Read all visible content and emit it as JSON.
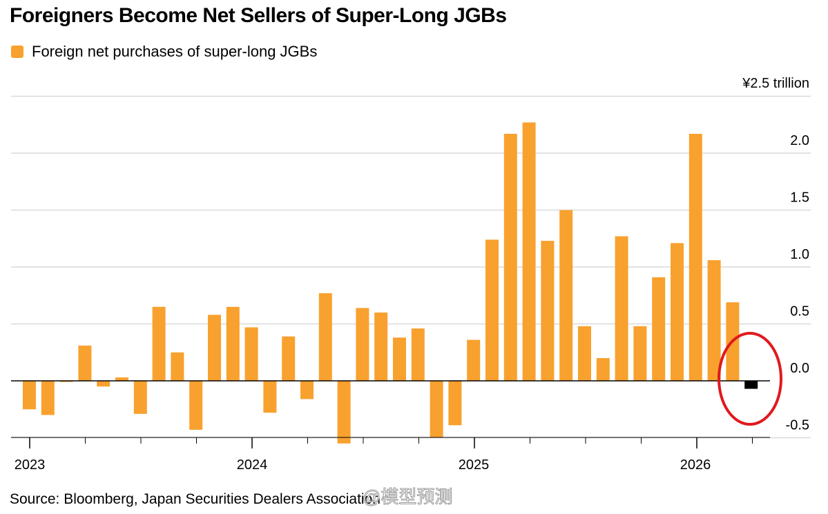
{
  "title": "Foreigners Become Net Sellers of Super-Long JGBs",
  "legend": {
    "label": "Foreign net purchases of super-long JGBs",
    "color": "#f8a12f"
  },
  "source": "Source: Bloomberg, Japan Securities Dealers Association",
  "watermark": "@模型预测",
  "colors": {
    "bar": "#f8a12f",
    "latest_bar": "#000000",
    "highlight_circle": "#e0191e",
    "grid": "#d9d9d9"
  },
  "chart_data": {
    "type": "bar",
    "unit_label": "¥2.5 trillion",
    "ylim": [
      -0.5,
      2.5
    ],
    "y_ticks": [
      "-0.5",
      "0.0",
      "0.5",
      "1.0",
      "1.5",
      "2.0"
    ],
    "x_tick_labels": [
      "2023",
      "2024",
      "2025",
      "2026"
    ],
    "grid": true,
    "annotation": "red circle around latest negative bar",
    "values": [
      -0.25,
      -0.3,
      -0.01,
      0.31,
      -0.05,
      0.03,
      -0.29,
      0.65,
      0.25,
      -0.43,
      0.58,
      0.65,
      0.47,
      -0.28,
      0.39,
      -0.16,
      0.77,
      -0.55,
      0.64,
      0.6,
      0.38,
      0.46,
      -0.5,
      -0.39,
      0.36,
      1.24,
      2.17,
      2.27,
      1.23,
      1.5,
      0.48,
      0.2,
      1.27,
      0.48,
      0.91,
      1.21,
      2.17,
      1.06,
      0.69,
      -0.07
    ]
  }
}
